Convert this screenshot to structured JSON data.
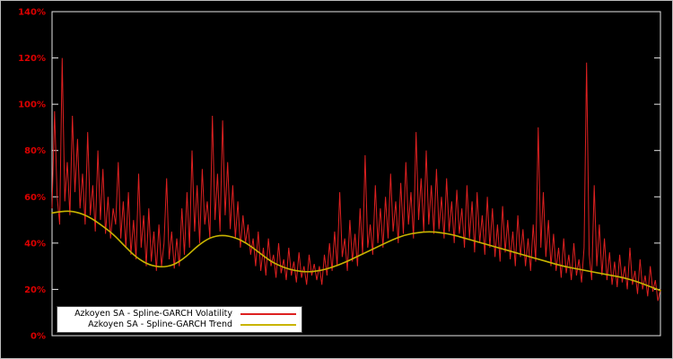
{
  "chart_data": {
    "type": "line",
    "title": "",
    "xlabel": "",
    "ylabel": "",
    "ylim": [
      0,
      140
    ],
    "ytick_values": [
      0,
      20,
      40,
      60,
      80,
      100,
      120,
      140
    ],
    "ytick_labels": [
      "0%",
      "20%",
      "40%",
      "60%",
      "80%",
      "100%",
      "120%",
      "140%"
    ],
    "grid": false,
    "background_color": "#000000",
    "axis_color": "#e6e6e6",
    "tick_label_color": "#dd0000",
    "legend": {
      "position": "bottom-left",
      "background": "#ffffff",
      "border_color": "#444444",
      "text_color": "#000000"
    },
    "series": [
      {
        "name": "Azkoyen SA - Spline-GARCH Volatility",
        "color": "#dd2020",
        "style": "noisy-line",
        "x_range": [
          0,
          1
        ],
        "values": [
          55,
          97,
          60,
          48,
          120,
          58,
          75,
          52,
          95,
          62,
          85,
          55,
          70,
          48,
          88,
          52,
          65,
          45,
          80,
          50,
          72,
          44,
          60,
          42,
          55,
          48,
          75,
          42,
          58,
          38,
          62,
          35,
          50,
          33,
          70,
          38,
          52,
          30,
          55,
          32,
          45,
          28,
          48,
          30,
          40,
          68,
          33,
          45,
          29,
          42,
          30,
          55,
          35,
          62,
          38,
          80,
          45,
          65,
          40,
          72,
          48,
          58,
          42,
          95,
          50,
          70,
          45,
          93,
          52,
          75,
          46,
          65,
          42,
          58,
          38,
          52,
          40,
          48,
          35,
          42,
          30,
          45,
          28,
          38,
          26,
          42,
          30,
          35,
          25,
          40,
          27,
          33,
          24,
          38,
          26,
          32,
          23,
          36,
          25,
          30,
          22,
          35,
          26,
          31,
          24,
          30,
          22,
          35,
          26,
          40,
          28,
          45,
          30,
          62,
          34,
          42,
          28,
          50,
          32,
          44,
          30,
          55,
          35,
          78,
          38,
          48,
          35,
          65,
          40,
          55,
          38,
          60,
          42,
          70,
          45,
          58,
          40,
          66,
          44,
          75,
          48,
          62,
          42,
          88,
          50,
          68,
          45,
          80,
          48,
          65,
          44,
          72,
          46,
          60,
          42,
          68,
          45,
          58,
          40,
          63,
          44,
          55,
          38,
          65,
          42,
          58,
          36,
          62,
          40,
          52,
          35,
          60,
          38,
          55,
          34,
          48,
          32,
          56,
          36,
          50,
          33,
          45,
          30,
          52,
          34,
          46,
          30,
          42,
          28,
          48,
          32,
          90,
          38,
          62,
          34,
          50,
          30,
          44,
          28,
          38,
          25,
          42,
          27,
          35,
          24,
          40,
          26,
          33,
          23,
          38,
          118,
          35,
          24,
          65,
          30,
          48,
          26,
          42,
          24,
          36,
          22,
          32,
          21,
          35,
          23,
          30,
          20,
          38,
          22,
          28,
          18,
          33,
          20,
          26,
          17,
          30,
          19,
          24,
          15,
          20
        ]
      },
      {
        "name": "Azkoyen SA - Spline-GARCH Trend",
        "color": "#c8b400",
        "style": "smooth-line",
        "x_range": [
          0,
          1
        ],
        "values": [
          53,
          54,
          53.5,
          51.5,
          48,
          44,
          38.5,
          33.5,
          30.5,
          29.5,
          30.5,
          34,
          39,
          42.5,
          43.5,
          42.5,
          40,
          36,
          32,
          29.5,
          28,
          27.5,
          28,
          29.5,
          31.5,
          34,
          36.5,
          39,
          41.5,
          43.5,
          44.5,
          45,
          44.5,
          43.5,
          42,
          40.5,
          39,
          37.5,
          36,
          34.5,
          33,
          31.5,
          30,
          29,
          28,
          27,
          26,
          25,
          23.5,
          21.5,
          19.5
        ]
      }
    ]
  }
}
